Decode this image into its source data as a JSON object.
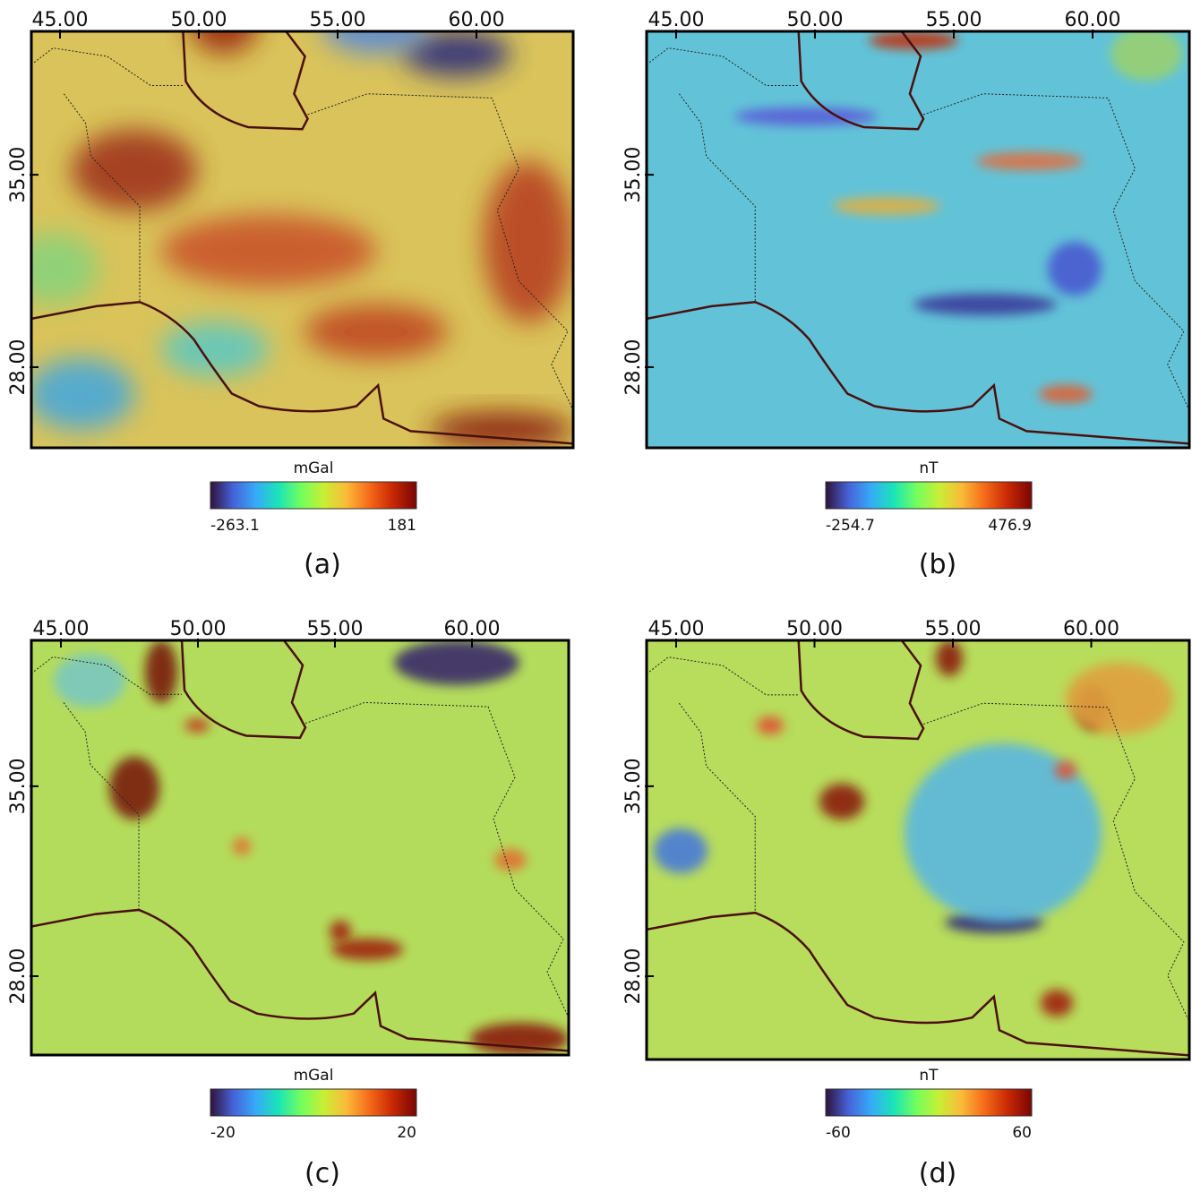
{
  "panels": [
    {
      "xticks": [
        "45.00",
        "50.00",
        "55.00",
        "60.00"
      ],
      "yticks": [
        "35.00",
        "28.00"
      ],
      "unit": "mGal",
      "cmin": "-263.1",
      "cmax": "181",
      "caption": "(a)"
    },
    {
      "xticks": [
        "45.00",
        "50.00",
        "55.00",
        "60.00"
      ],
      "yticks": [
        "35.00",
        "28.00"
      ],
      "unit": "nT",
      "cmin": "-254.7",
      "cmax": "476.9",
      "caption": "(b)"
    },
    {
      "xticks": [
        "45.00",
        "50.00",
        "55.00",
        "60.00"
      ],
      "yticks": [
        "35.00",
        "28.00"
      ],
      "unit": "mGal",
      "cmin": "-20",
      "cmax": "20",
      "caption": "(c)"
    },
    {
      "xticks": [
        "45.00",
        "50.00",
        "55.00",
        "60.00"
      ],
      "yticks": [
        "35.00",
        "28.00"
      ],
      "unit": "nT",
      "cmin": "-60",
      "cmax": "60",
      "caption": "(d)"
    }
  ]
}
